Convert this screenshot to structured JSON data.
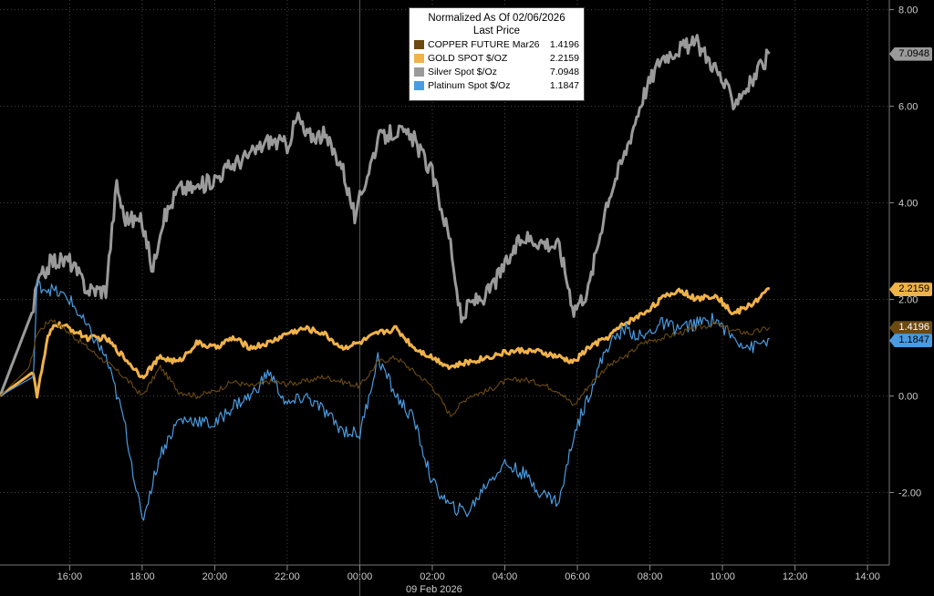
{
  "legend": {
    "title": "Normalized As Of 02/06/2026",
    "subtitle": "Last Price"
  },
  "date_label": "09 Feb 2026",
  "chart_data": {
    "type": "line",
    "ylim": [
      -3.5,
      8.2
    ],
    "yticks": [
      "8.00",
      "6.00",
      "4.00",
      "2.00",
      "0.00",
      "-2.00"
    ],
    "ytick_values": [
      8,
      6,
      4,
      2,
      0,
      -2
    ],
    "xticks": [
      "16:00",
      "18:00",
      "20:00",
      "22:00",
      "00:00",
      "02:00",
      "04:00",
      "06:00",
      "08:00",
      "10:00",
      "12:00",
      "14:00"
    ],
    "xtick_hours": [
      16,
      18,
      20,
      22,
      24,
      26,
      28,
      30,
      32,
      34,
      36,
      38
    ],
    "xlim_hours": [
      14.08,
      38.6
    ],
    "divider_hour": 24,
    "series": [
      {
        "name": "COPPER FUTURE Mar26",
        "value": "1.4196",
        "color": "#6b4a12",
        "x": [
          14.08,
          14.9,
          15.1,
          15.5,
          16.0,
          16.5,
          17.0,
          17.5,
          18.0,
          18.5,
          19.0,
          19.5,
          20.0,
          20.5,
          21.0,
          21.5,
          22.0,
          22.5,
          23.0,
          23.5,
          24.0,
          24.5,
          25.0,
          25.5,
          26.0,
          26.5,
          27.0,
          27.5,
          28.0,
          28.5,
          29.0,
          29.5,
          29.9,
          30.3,
          30.8,
          31.3,
          31.8,
          32.3,
          32.8,
          33.3,
          33.8,
          34.3,
          34.8,
          35.3
        ],
        "y": [
          0.0,
          0.6,
          1.3,
          1.6,
          1.3,
          1.0,
          0.7,
          0.4,
          0.0,
          0.6,
          0.1,
          0.0,
          0.1,
          0.3,
          0.2,
          0.3,
          0.25,
          0.3,
          0.4,
          0.3,
          0.2,
          0.7,
          0.8,
          0.5,
          0.2,
          -0.4,
          0.0,
          0.1,
          0.3,
          0.35,
          0.25,
          0.1,
          -0.2,
          0.2,
          0.6,
          0.8,
          1.1,
          1.2,
          1.3,
          1.4,
          1.5,
          1.35,
          1.3,
          1.42
        ]
      },
      {
        "name": "GOLD SPOT $/OZ",
        "value": "2.2159",
        "color": "#f0b24a",
        "x": [
          14.08,
          15.0,
          15.1,
          15.4,
          15.6,
          16.0,
          16.5,
          17.0,
          17.5,
          18.0,
          18.5,
          19.0,
          19.5,
          20.0,
          20.5,
          21.0,
          21.5,
          22.0,
          22.5,
          23.0,
          23.5,
          24.0,
          24.5,
          25.0,
          25.5,
          26.0,
          26.5,
          27.0,
          27.5,
          28.0,
          28.5,
          29.0,
          29.5,
          29.9,
          30.3,
          30.8,
          31.3,
          31.8,
          32.3,
          32.8,
          33.3,
          33.8,
          34.3,
          34.8,
          35.3
        ],
        "y": [
          0.0,
          0.5,
          0.0,
          1.2,
          1.5,
          1.4,
          1.2,
          1.2,
          0.8,
          0.4,
          0.8,
          0.7,
          1.1,
          1.0,
          1.2,
          1.0,
          1.1,
          1.3,
          1.4,
          1.3,
          1.0,
          1.1,
          1.3,
          1.4,
          1.0,
          0.8,
          0.6,
          0.7,
          0.8,
          0.9,
          0.95,
          0.9,
          0.8,
          0.7,
          1.0,
          1.2,
          1.5,
          1.7,
          2.0,
          2.2,
          2.0,
          2.1,
          1.7,
          1.9,
          2.2159
        ]
      },
      {
        "name": "Silver Spot $/Oz",
        "value": "7.0948",
        "color": "#9a9a9a",
        "x": [
          14.08,
          15.0,
          15.1,
          15.5,
          16.0,
          16.5,
          17.0,
          17.3,
          17.5,
          18.0,
          18.3,
          18.5,
          19.0,
          19.5,
          20.0,
          20.5,
          21.0,
          21.5,
          22.0,
          22.3,
          22.5,
          23.0,
          23.5,
          23.9,
          24.0,
          24.5,
          25.0,
          25.5,
          26.0,
          26.5,
          26.8,
          27.0,
          27.5,
          28.0,
          28.5,
          29.0,
          29.5,
          29.9,
          30.3,
          30.8,
          31.3,
          31.8,
          32.3,
          32.8,
          33.3,
          33.8,
          34.3,
          34.8,
          35.3
        ],
        "y": [
          0.0,
          1.8,
          2.3,
          2.8,
          2.8,
          2.2,
          2.2,
          4.4,
          3.7,
          3.6,
          2.6,
          3.5,
          4.3,
          4.3,
          4.5,
          4.8,
          5.0,
          5.3,
          5.2,
          5.8,
          5.4,
          5.4,
          4.8,
          3.6,
          4.1,
          5.3,
          5.5,
          5.3,
          4.6,
          3.2,
          1.5,
          1.9,
          2.1,
          2.7,
          3.3,
          3.2,
          3.1,
          1.8,
          2.2,
          4.0,
          5.0,
          6.2,
          7.0,
          7.2,
          7.3,
          6.8,
          6.1,
          6.5,
          7.0948
        ]
      },
      {
        "name": "Platinum Spot $/Oz",
        "value": "1.1847",
        "color": "#4a9be0",
        "x": [
          14.08,
          15.0,
          15.1,
          15.5,
          16.0,
          16.5,
          17.0,
          17.5,
          18.0,
          18.5,
          19.0,
          19.5,
          20.0,
          20.5,
          21.0,
          21.5,
          22.0,
          22.5,
          23.0,
          23.5,
          24.0,
          24.5,
          25.0,
          25.5,
          26.0,
          26.5,
          27.0,
          27.5,
          28.0,
          28.5,
          29.0,
          29.5,
          29.9,
          30.3,
          30.8,
          31.3,
          31.8,
          32.3,
          32.8,
          33.3,
          33.8,
          34.3,
          34.8,
          35.3
        ],
        "y": [
          0.0,
          0.4,
          2.3,
          2.2,
          2.0,
          1.4,
          0.8,
          -0.5,
          -2.6,
          -1.2,
          -0.5,
          -0.5,
          -0.6,
          -0.2,
          0.0,
          0.5,
          -0.2,
          0.0,
          -0.3,
          -0.7,
          -0.8,
          0.8,
          0.0,
          -0.5,
          -1.8,
          -2.3,
          -2.4,
          -1.8,
          -1.4,
          -1.6,
          -2.0,
          -2.2,
          -0.8,
          0.0,
          1.0,
          1.4,
          1.2,
          1.5,
          1.4,
          1.5,
          1.6,
          1.2,
          1.0,
          1.1847
        ]
      }
    ]
  }
}
